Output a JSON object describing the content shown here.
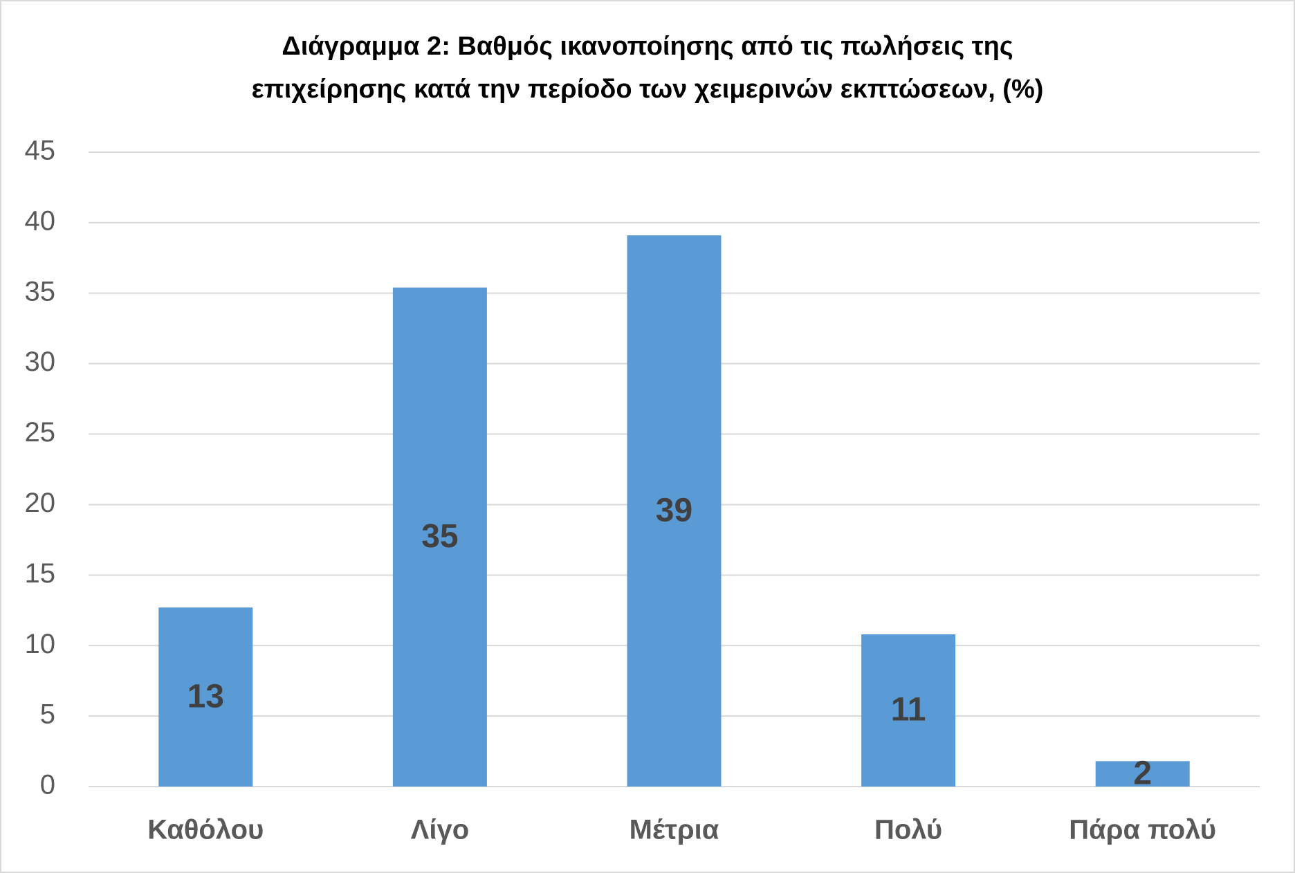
{
  "chart_data": {
    "type": "bar",
    "title": [
      "Διάγραμμα 2: Βαθμός ικανοποίησης από τις πωλήσεις της",
      "επιχείρησης κατά την περίοδο των χειμερινών εκπτώσεων, (%)"
    ],
    "categories": [
      "Καθόλου",
      "Λίγο",
      "Μέτρια",
      "Πολύ",
      "Πάρα πολύ"
    ],
    "values": [
      12.7,
      35.4,
      39.1,
      10.8,
      1.8
    ],
    "value_labels": [
      "13",
      "35",
      "39",
      "11",
      "2"
    ],
    "color": "#5b9bd5",
    "ylim": [
      0,
      45
    ],
    "yticks": [
      0,
      5,
      10,
      15,
      20,
      25,
      30,
      35,
      40,
      45
    ],
    "grid": true
  }
}
